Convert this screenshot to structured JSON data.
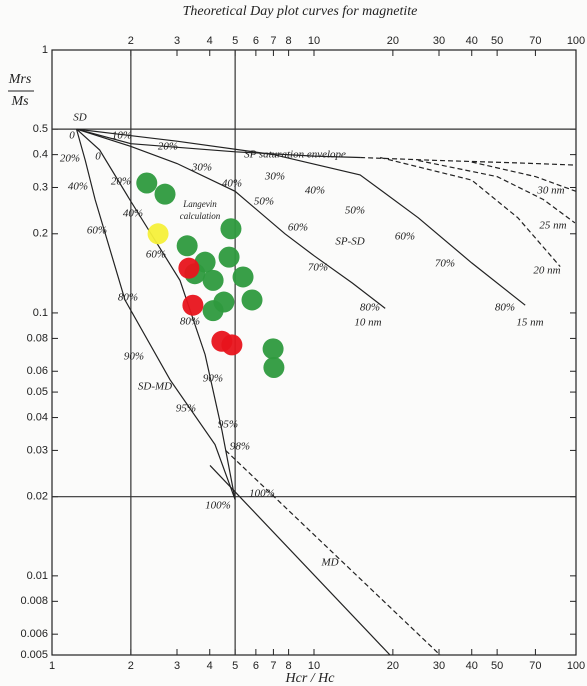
{
  "chart_data": {
    "type": "scatter",
    "title": "Theoretical Day plot curves for magnetite",
    "ylabel_top": "Mrs",
    "ylabel_bottom": "Ms",
    "xlabel": "Hcr / Hc",
    "log_x": true,
    "log_y": true,
    "xlim": [
      1,
      100
    ],
    "ylim": [
      0.005,
      1
    ],
    "xticks": [
      1,
      2,
      3,
      4,
      5,
      6,
      7,
      8,
      10,
      20,
      30,
      40,
      50,
      70,
      100
    ],
    "yticks": [
      1,
      0.5,
      0.4,
      0.3,
      0.2,
      0.1,
      0.08,
      0.06,
      0.05,
      0.04,
      0.03,
      0.02,
      0.01,
      0.008,
      0.006,
      0.005
    ],
    "reference_lines": {
      "x": [
        2,
        5
      ],
      "y": [
        0.5,
        0.02
      ]
    },
    "series": [
      {
        "color": "#2e9a3e",
        "x": [
          2.3,
          2.7,
          3.28,
          4.82,
          3.84,
          4.74,
          3.51,
          4.12,
          5.36,
          5.8,
          4.53,
          4.12,
          6.98,
          7.03
        ],
        "values": [
          0.312,
          0.283,
          0.18,
          0.209,
          0.156,
          0.163,
          0.141,
          0.133,
          0.137,
          0.112,
          0.11,
          0.102,
          0.073,
          0.062
        ]
      },
      {
        "color": "#e8141c",
        "x": [
          3.33,
          3.45,
          4.45,
          4.86
        ],
        "values": [
          0.148,
          0.107,
          0.078,
          0.0756
        ]
      },
      {
        "color": "#f5f03a",
        "x": [
          2.54
        ],
        "values": [
          0.2
        ]
      }
    ],
    "curves": [
      {
        "name": "SP saturation envelope",
        "dash": false,
        "x": [
          1.24,
          2,
          5,
          10,
          15
        ],
        "values": [
          0.5,
          0.44,
          0.41,
          0.395,
          0.39
        ]
      },
      {
        "dash": true,
        "x": [
          15,
          30,
          60,
          100
        ],
        "values": [
          0.39,
          0.38,
          0.372,
          0.365
        ]
      },
      {
        "name": "10 nm",
        "dash": false,
        "x": [
          1.24,
          2,
          3,
          5,
          7.75,
          10,
          14,
          18.7
        ],
        "values": [
          0.5,
          0.43,
          0.37,
          0.29,
          0.2,
          0.165,
          0.13,
          0.104
        ]
      },
      {
        "name": "15 nm",
        "dash": false,
        "x": [
          1.24,
          3,
          7,
          15,
          25,
          40,
          64
        ],
        "values": [
          0.5,
          0.45,
          0.4,
          0.335,
          0.23,
          0.155,
          0.107
        ]
      },
      {
        "name": "20 nm",
        "dash": true,
        "x": [
          17.9,
          40,
          60,
          87
        ],
        "values": [
          0.39,
          0.32,
          0.23,
          0.15
        ]
      },
      {
        "name": "25 nm",
        "dash": true,
        "x": [
          25,
          50,
          75,
          99
        ],
        "values": [
          0.38,
          0.33,
          0.27,
          0.22
        ]
      },
      {
        "name": "30 nm",
        "dash": true,
        "x": [
          40,
          70,
          100
        ],
        "values": [
          0.375,
          0.33,
          0.29
        ]
      },
      {
        "dash": false,
        "x": [
          1.24,
          1.34,
          1.46,
          1.9,
          2.82,
          4.19,
          5
        ],
        "values": [
          0.5,
          0.38,
          0.27,
          0.112,
          0.0557,
          0.0316,
          0.0195
        ]
      },
      {
        "dash": false,
        "x": [
          1.24,
          1.52,
          1.98,
          3.08,
          3.84,
          4.45,
          5
        ],
        "values": [
          0.5,
          0.417,
          0.27,
          0.133,
          0.0694,
          0.0358,
          0.0195
        ]
      },
      {
        "name": "MD",
        "dash": false,
        "x": [
          4.01,
          19.5
        ],
        "values": [
          0.0263,
          0.005
        ]
      },
      {
        "dash": true,
        "x": [
          4.6,
          30.3
        ],
        "values": [
          0.03,
          0.005
        ]
      }
    ],
    "annotations": [
      "SD",
      "0",
      "10%",
      "20%",
      "30%",
      "40%",
      "50%",
      "60%",
      "70%",
      "80%",
      "30%",
      "40%",
      "50%",
      "60%",
      "70%",
      "80%",
      "20%",
      "0",
      "40%",
      "20%",
      "60%",
      "40%",
      "60%",
      "80%",
      "80%",
      "90%",
      "90%",
      "95%",
      "95%",
      "98%",
      "100%",
      "100%",
      "Langevin",
      "calculation",
      "SP-SD",
      "SD-MD"
    ]
  }
}
